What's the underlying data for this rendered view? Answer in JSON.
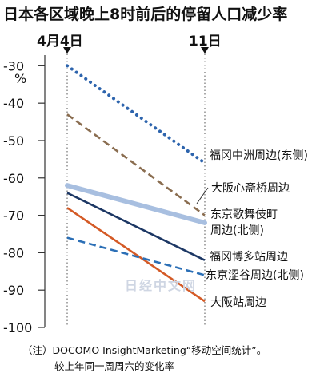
{
  "chart_data": {
    "type": "line",
    "title": "日本各区域晚上8时前后的停留人口减少率",
    "x": [
      "4月4日",
      "11日"
    ],
    "ylabel": "%",
    "ylim": [
      -100,
      -28
    ],
    "yticks": [
      "-30",
      "-40",
      "-50",
      "-60",
      "-70",
      "-80",
      "-90",
      "-100"
    ],
    "grid": false,
    "series": [
      {
        "name": "福冈中洲周边(东侧)",
        "values": [
          -30,
          -56
        ],
        "color": "#2d64ad",
        "style": "dotted"
      },
      {
        "name": "大阪心斋桥周边",
        "values": [
          -43,
          -70
        ],
        "color": "#8a6d50",
        "style": "dashed"
      },
      {
        "name": "东京歌舞伎町周边(北侧)",
        "values": [
          -62,
          -72
        ],
        "color": "#a8bfe0",
        "style": "thick"
      },
      {
        "name": "福冈博多站周边",
        "values": [
          -64,
          -82
        ],
        "color": "#1c3764",
        "style": "solid"
      },
      {
        "name": "东京涩谷周边(北侧)",
        "values": [
          -76,
          -86
        ],
        "color": "#2b6fb6",
        "style": "dashed"
      },
      {
        "name": "大阪站周边",
        "values": [
          -68,
          -93
        ],
        "color": "#d45a26",
        "style": "solid"
      }
    ],
    "labels": [
      {
        "lines": [
          "福冈中洲周边(东侧)"
        ]
      },
      {
        "lines": [
          "大阪心斋桥周边"
        ]
      },
      {
        "lines": [
          "东京歌舞伎町",
          "周边(北侧)"
        ]
      },
      {
        "lines": [
          "福冈博多站周边"
        ]
      },
      {
        "lines": [
          "东京涩谷周边(北侧)"
        ]
      },
      {
        "lines": [
          "大阪站周边"
        ]
      }
    ]
  },
  "watermark": "日经中文网",
  "note": {
    "line1": "（注）DOCOMO InsightMarketing“移动空间统计”。",
    "line2": "较上年同一周周六的变化率"
  }
}
